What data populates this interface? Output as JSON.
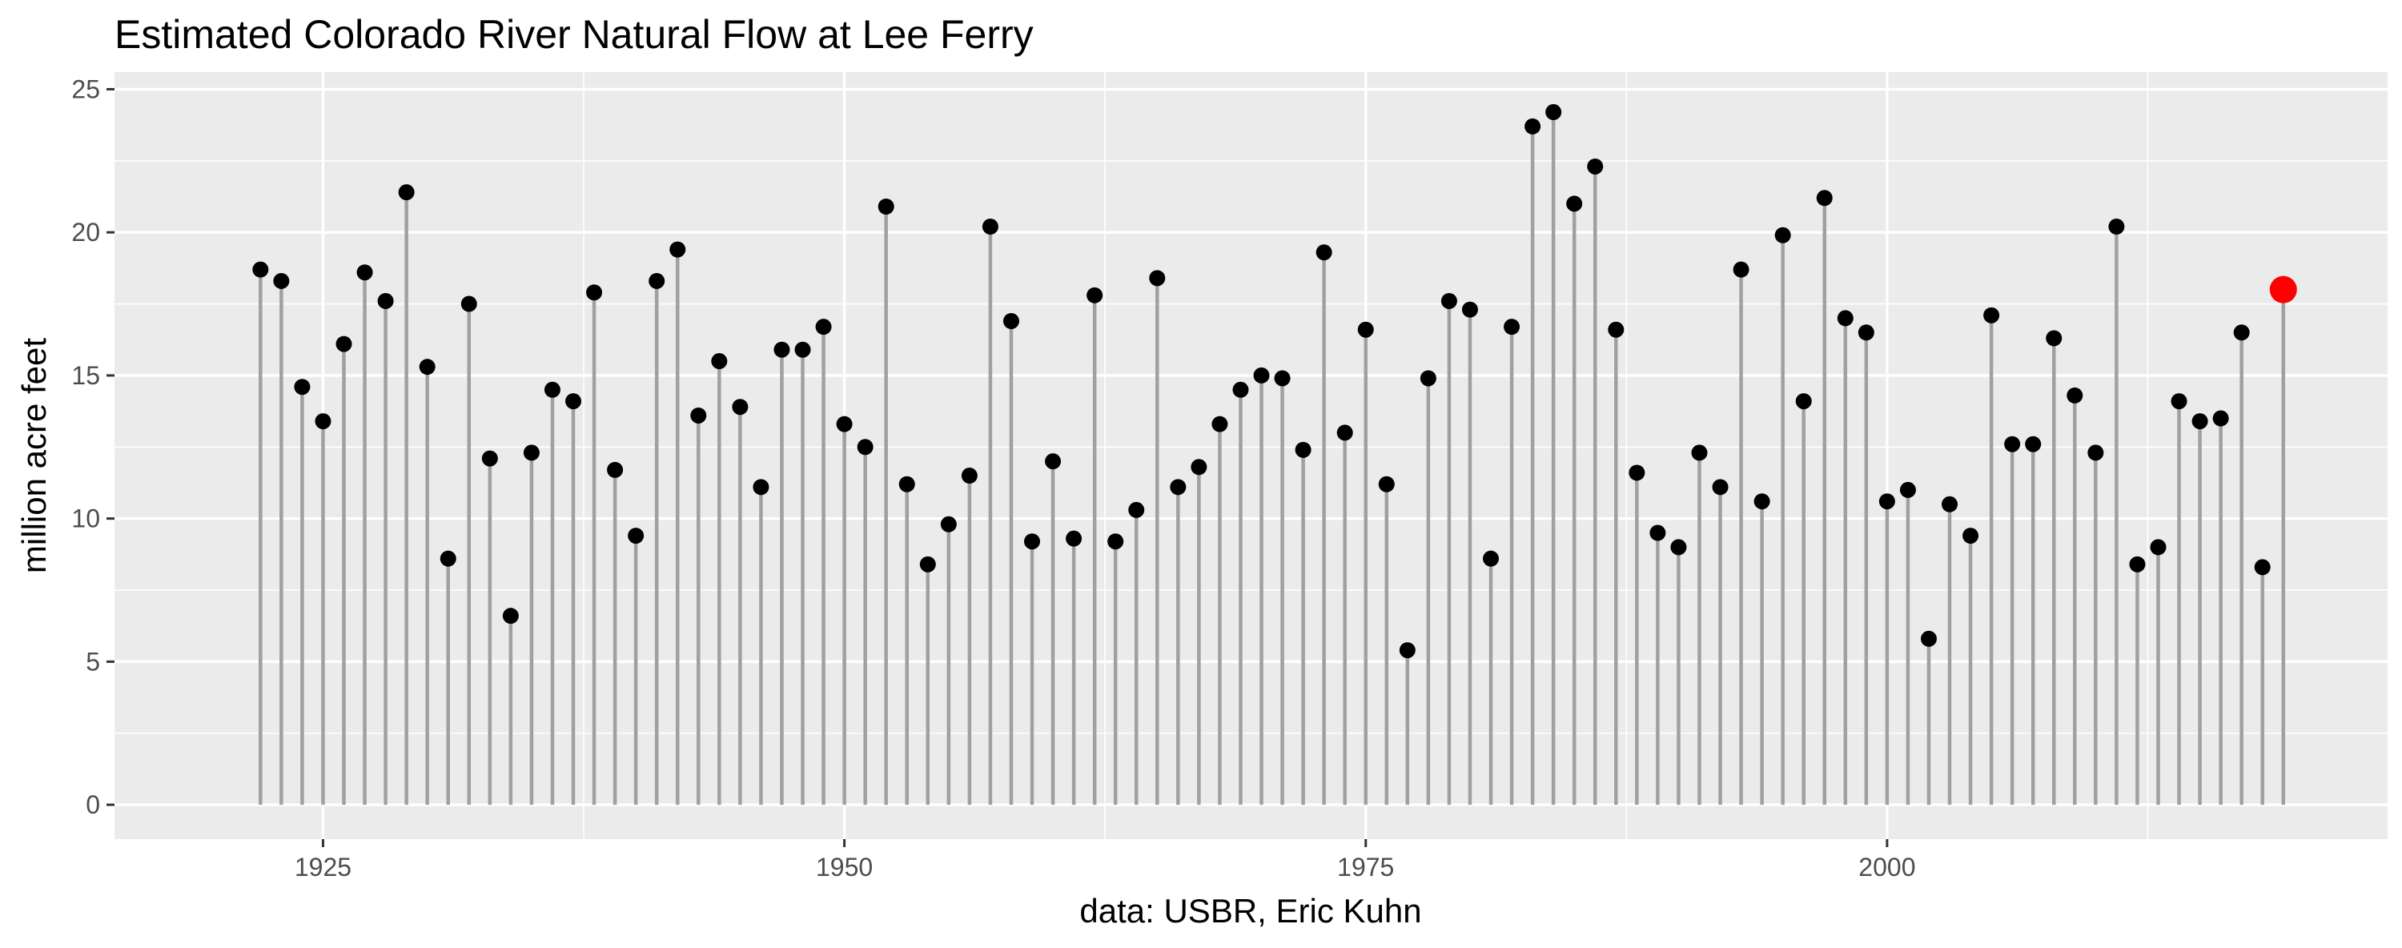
{
  "chart_data": {
    "type": "lollipop",
    "title": "Estimated Colorado River Natural Flow at Lee Ferry",
    "xlabel": "data: USBR, Eric Kuhn",
    "ylabel": "million acre feet",
    "xlim": [
      1915,
      2024
    ],
    "ylim": [
      -1.2,
      25.6
    ],
    "x_ticks": [
      1925,
      1950,
      1975,
      2000
    ],
    "y_ticks": [
      0,
      5,
      10,
      15,
      20,
      25
    ],
    "grid": true,
    "legend": "none",
    "colors": {
      "panel_bg": "#ebebeb",
      "grid_major": "#ffffff",
      "stem": "#a0a0a0",
      "point": "#000000",
      "highlight": "#ff0000"
    },
    "highlight_year": 2019,
    "series": [
      {
        "x": [
          1922,
          1923,
          1924,
          1925,
          1926,
          1927,
          1928,
          1929,
          1930,
          1931,
          1932,
          1933,
          1934,
          1935,
          1936,
          1937,
          1938,
          1939,
          1940,
          1941,
          1942,
          1943,
          1944,
          1945,
          1946,
          1947,
          1948,
          1949,
          1950,
          1951,
          1952,
          1953,
          1954,
          1955,
          1956,
          1957,
          1958,
          1959,
          1960,
          1961,
          1962,
          1963,
          1964,
          1965,
          1966,
          1967,
          1968,
          1969,
          1970,
          1971,
          1972,
          1973,
          1974,
          1975,
          1976,
          1977,
          1978,
          1979,
          1980,
          1981,
          1982,
          1983,
          1984,
          1985,
          1986,
          1987,
          1988,
          1989,
          1990,
          1991,
          1992,
          1993,
          1994,
          1995,
          1996,
          1997,
          1998,
          1999,
          2000,
          2001,
          2002,
          2003,
          2004,
          2005,
          2006,
          2007,
          2008,
          2009,
          2010,
          2011,
          2012,
          2013,
          2014,
          2015,
          2016,
          2017,
          2018,
          2019
        ],
        "y": [
          18.7,
          18.3,
          14.6,
          13.4,
          16.1,
          18.6,
          17.6,
          21.4,
          15.3,
          8.6,
          17.5,
          12.1,
          6.6,
          12.3,
          14.5,
          14.1,
          17.9,
          11.7,
          9.4,
          18.3,
          19.4,
          13.6,
          15.5,
          13.9,
          11.1,
          15.9,
          15.9,
          16.7,
          13.3,
          12.5,
          20.9,
          11.2,
          8.4,
          9.8,
          11.5,
          20.2,
          16.9,
          9.2,
          12.0,
          9.3,
          17.8,
          9.2,
          10.3,
          18.4,
          11.1,
          11.8,
          13.3,
          14.5,
          15.0,
          14.9,
          12.4,
          19.3,
          13.0,
          16.6,
          11.2,
          5.4,
          14.9,
          17.6,
          17.3,
          8.6,
          16.7,
          23.7,
          24.2,
          21.0,
          22.3,
          16.6,
          11.6,
          9.5,
          9.0,
          12.3,
          11.1,
          18.7,
          10.6,
          19.9,
          14.1,
          21.2,
          17.0,
          16.5,
          10.6,
          11.0,
          5.8,
          10.5,
          9.4,
          17.1,
          12.6,
          12.6,
          16.3,
          14.3,
          12.3,
          20.2,
          8.4,
          9.0,
          14.1,
          13.4,
          13.5,
          16.5,
          8.3,
          18.0
        ]
      }
    ]
  }
}
